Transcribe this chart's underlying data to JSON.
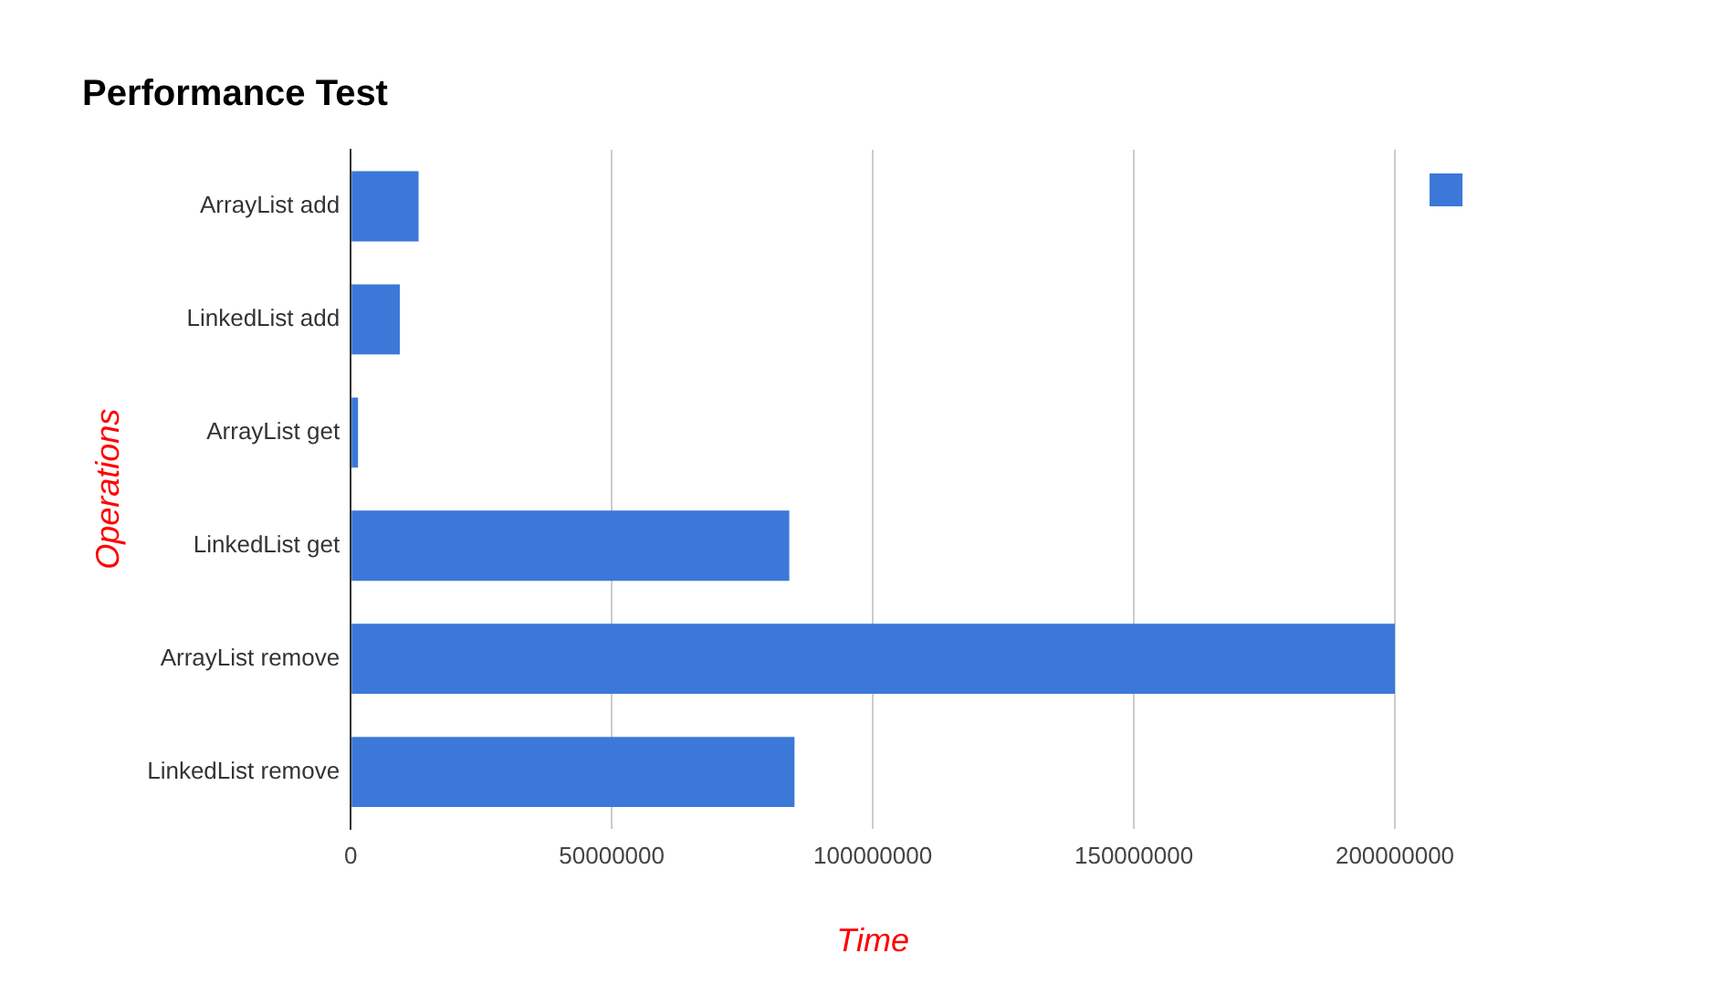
{
  "chart_data": {
    "type": "bar",
    "orientation": "horizontal",
    "title": "Performance Test",
    "xlabel": "Time",
    "ylabel": "Operations",
    "categories": [
      "ArrayList add",
      "LinkedList add",
      "ArrayList get",
      "LinkedList get",
      "ArrayList remove",
      "LinkedList remove"
    ],
    "series": [
      {
        "color": "#3c78d8",
        "values": [
          13000000,
          9400000,
          1400000,
          84000000,
          200000000,
          85000000
        ]
      }
    ],
    "xlim": [
      0,
      200000000
    ],
    "xticks": [
      0,
      50000000,
      100000000,
      150000000,
      200000000
    ],
    "grid": "x"
  }
}
